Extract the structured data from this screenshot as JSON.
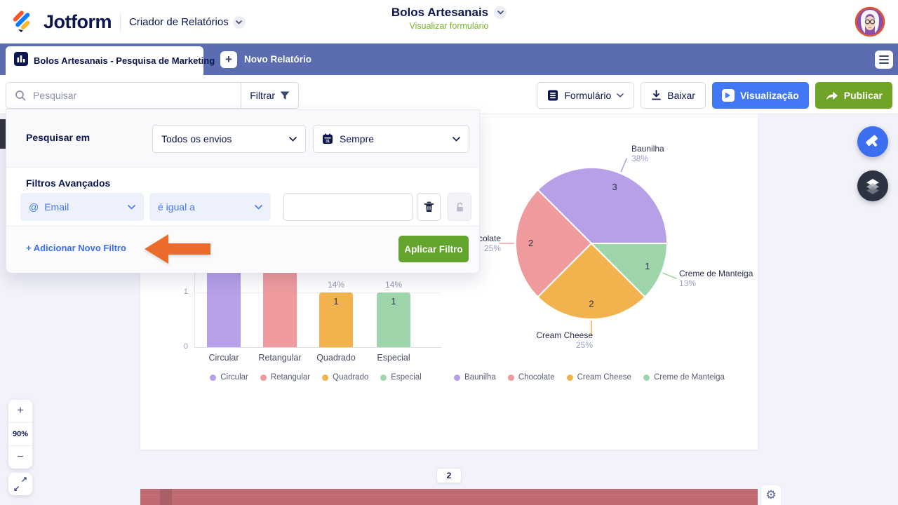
{
  "header": {
    "logo_text": "Jotform",
    "app_name": "Criador de Relatórios",
    "form_title": "Bolos Artesanais",
    "view_form_link": "Visualizar formulário"
  },
  "tab_bar": {
    "active_tab_label": "Bolos Artesanais - Pesquisa de Marketing",
    "new_report_label": "Novo Relatório"
  },
  "toolbar": {
    "search_placeholder": "Pesquisar",
    "filter_label": "Filtrar",
    "form_button_label": "Formulário",
    "download_button_label": "Baixar",
    "preview_button_label": "Visualização",
    "publish_button_label": "Publicar"
  },
  "filter_panel": {
    "search_in_label": "Pesquisar em",
    "submissions_value": "Todos os envios",
    "date_range_value": "Sempre",
    "advanced_filters_title": "Filtros Avançados",
    "field_icon": "@",
    "field_value": "Email",
    "operator_value": "é igual a",
    "value_input": "",
    "add_filter_label": "+ Adicionar Novo Filtro",
    "apply_button_label": "Aplicar Filtro"
  },
  "zoom_controls": {
    "zoom_in": "+",
    "zoom_level": "90%",
    "zoom_out": "−"
  },
  "page_indicator": "2",
  "chart_data": [
    {
      "type": "bar",
      "categories": [
        "Circular",
        "Retangular",
        "Quadrado",
        "Especial"
      ],
      "values_visible": [
        null,
        null,
        1,
        1
      ],
      "pct_labels": [
        "",
        "",
        "14%",
        "14%"
      ],
      "value_labels": [
        "",
        "",
        "1",
        "1"
      ],
      "values_est_for_render": [
        3,
        2,
        1,
        1
      ],
      "colors": [
        "#b7a0e8",
        "#ef9b9d",
        "#f2b34f",
        "#9ed5aa"
      ],
      "yticks": [
        "1",
        "0"
      ],
      "legend": [
        "Circular",
        "Retangular",
        "Quadrado",
        "Especial"
      ],
      "note": "Tops of Circular and Retangular bars hidden behind filter overlay; Quadrado and Especial each show 1 (14%)"
    },
    {
      "type": "pie",
      "labels": [
        "Baunilha",
        "Chocolate",
        "Cream Cheese",
        "Creme de Manteiga"
      ],
      "values": [
        3,
        2,
        2,
        1
      ],
      "pct_labels": [
        "38%",
        "25%",
        "25%",
        "13%"
      ],
      "colors": [
        "#b7a0e8",
        "#ef9b9d",
        "#f2b34f",
        "#9ed5aa"
      ],
      "legend": [
        "Baunilha",
        "Chocolate",
        "Cream Cheese",
        "Creme de Manteiga"
      ]
    }
  ],
  "colors": {
    "accent_blue": "#4277f5",
    "accent_green": "#6fa427",
    "tab_bar": "#5b6cb0",
    "navy": "#0a1551",
    "canvas_bg": "#f2f2fa",
    "arrow_orange": "#ed6a2d",
    "bottom_band_red": "#bf6a70"
  }
}
